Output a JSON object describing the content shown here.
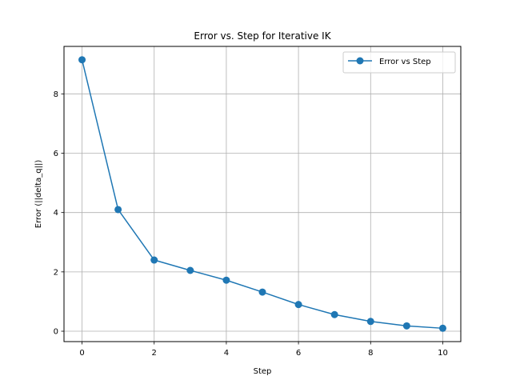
{
  "chart_data": {
    "type": "line",
    "title": "Error vs. Step for Iterative IK",
    "xlabel": "Step",
    "ylabel": "Error (||delta_q||)",
    "xlim": [
      -0.5,
      10.5
    ],
    "ylim": [
      -0.35,
      9.6
    ],
    "xticks": [
      0,
      2,
      4,
      6,
      8,
      10
    ],
    "yticks": [
      0,
      2,
      4,
      6,
      8
    ],
    "grid": true,
    "legend_position": "upper right",
    "series": [
      {
        "name": "Error vs Step",
        "color": "#1f77b4",
        "marker": "circle",
        "x": [
          0,
          1,
          2,
          3,
          4,
          5,
          6,
          7,
          8,
          9,
          10
        ],
        "y": [
          9.15,
          4.1,
          2.4,
          2.05,
          1.72,
          1.32,
          0.9,
          0.56,
          0.33,
          0.18,
          0.1
        ]
      }
    ]
  }
}
